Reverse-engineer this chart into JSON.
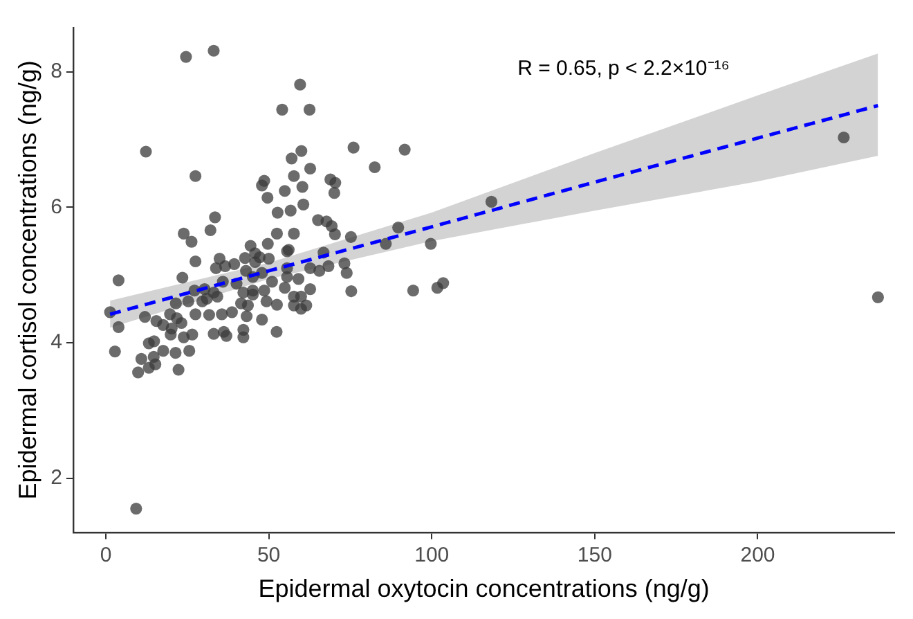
{
  "chart_data": {
    "type": "scatter",
    "xlabel": "Epidermal oxytocin concentrations (ng/g)",
    "ylabel": "Epidermal cortisol concentrations (ng/g)",
    "annotations": [
      "R = 0.65, p < 2.2×10⁻¹⁶"
    ],
    "xlim": [
      -10,
      242
    ],
    "xticks": [
      0,
      50,
      100,
      150,
      200
    ],
    "ylim": [
      1.2,
      8.65
    ],
    "yticks": [
      2,
      4,
      6,
      8
    ],
    "grid": false,
    "legend": false,
    "marker": "circle",
    "series": [
      {
        "color": "#3a3a3a",
        "x": [
          24.6,
          33.1,
          59.6,
          54.1,
          62.5,
          12.3,
          76.0,
          91.7,
          60.0,
          57.0,
          62.7,
          82.5,
          27.5,
          48.6,
          47.9,
          57.7,
          54.9,
          60.3,
          68.9,
          70.4,
          70.1,
          49.6,
          60.6,
          52.7,
          56.7,
          33.5,
          65.1,
          67.7,
          69.3,
          70.3,
          23.9,
          32.1,
          26.3,
          52.5,
          57.7,
          49.7,
          75.2,
          89.7,
          85.9,
          99.7,
          44.4,
          27.5,
          34.9,
          39.4,
          56.1,
          66.8,
          73.2,
          42.7,
          47.2,
          3.9,
          23.5,
          1.3,
          3.9,
          2.8,
          9.3,
          9.9,
          10.9,
          13.2,
          15.2,
          14.7,
          17.6,
          21.4,
          22.3,
          25.6,
          13.2,
          14.8,
          19.9,
          23.9,
          26.5,
          12.0,
          15.5,
          17.6,
          19.7,
          21.8,
          23.2,
          20.2,
          21.5,
          27.2,
          25.3,
          29.6,
          27.5,
          31.7,
          31.0,
          34.2,
          33.1,
          36.2,
          37.0,
          35.6,
          38.7,
          42.2,
          42.2,
          43.2,
          41.5,
          43.6,
          45.1,
          42.2,
          45.1,
          47.9,
          49.3,
          48.6,
          52.5,
          52.4,
          51.0,
          54.9,
          59.1,
          57.7,
          57.7,
          59.9,
          61.5,
          62.7,
          59.9,
          55.6,
          62.7,
          68.3,
          73.9,
          75.3,
          94.3,
          101.7,
          103.5,
          36.6,
          33.8,
          45.8,
          50.0,
          45.8,
          55.6,
          40.1,
          35.9,
          33.1,
          30.3,
          45.1,
          47.9,
          43.0,
          55.6,
          65.5,
          226.4,
          236.9,
          118.3
        ],
        "values": [
          8.22,
          8.31,
          7.81,
          7.44,
          7.44,
          6.82,
          6.88,
          6.85,
          6.83,
          6.72,
          6.57,
          6.59,
          6.46,
          6.39,
          6.32,
          6.46,
          6.24,
          6.3,
          6.41,
          6.36,
          6.21,
          6.14,
          6.04,
          5.92,
          5.95,
          5.85,
          5.81,
          5.79,
          5.72,
          5.6,
          5.61,
          5.66,
          5.49,
          5.61,
          5.61,
          5.46,
          5.56,
          5.7,
          5.46,
          5.46,
          5.43,
          5.2,
          5.24,
          5.16,
          5.37,
          5.33,
          5.17,
          5.25,
          5.26,
          4.92,
          4.96,
          4.45,
          4.23,
          3.87,
          1.55,
          3.56,
          3.76,
          3.63,
          3.68,
          3.79,
          3.88,
          3.85,
          3.6,
          3.88,
          3.99,
          4.02,
          4.12,
          4.08,
          4.12,
          4.38,
          4.32,
          4.26,
          4.42,
          4.36,
          4.29,
          4.21,
          4.58,
          4.77,
          4.61,
          4.61,
          4.42,
          4.41,
          4.65,
          4.68,
          4.13,
          4.16,
          4.1,
          4.42,
          4.45,
          4.19,
          4.08,
          4.39,
          4.58,
          4.55,
          4.71,
          4.74,
          4.77,
          4.34,
          4.61,
          4.77,
          4.56,
          4.16,
          4.9,
          4.81,
          4.94,
          4.68,
          4.55,
          4.5,
          4.55,
          4.79,
          4.68,
          4.97,
          5.1,
          5.13,
          5.03,
          4.76,
          4.77,
          4.81,
          4.88,
          5.13,
          5.1,
          5.19,
          5.24,
          5.32,
          5.35,
          4.87,
          4.9,
          4.74,
          4.79,
          4.97,
          5.03,
          5.06,
          5.1,
          5.06,
          7.03,
          4.67,
          6.08
        ]
      },
      {
        "type": "line",
        "color": "#0000ff",
        "line_style": "dashed",
        "marker": "none",
        "x": [
          1.3,
          50,
          100,
          150,
          200,
          236.9
        ],
        "values": [
          4.42,
          5.06,
          5.71,
          6.37,
          7.02,
          7.5
        ],
        "lower": [
          4.22,
          4.94,
          5.5,
          5.95,
          6.38,
          6.76
        ],
        "upper": [
          4.62,
          5.18,
          5.92,
          6.8,
          7.65,
          8.27
        ]
      }
    ]
  }
}
